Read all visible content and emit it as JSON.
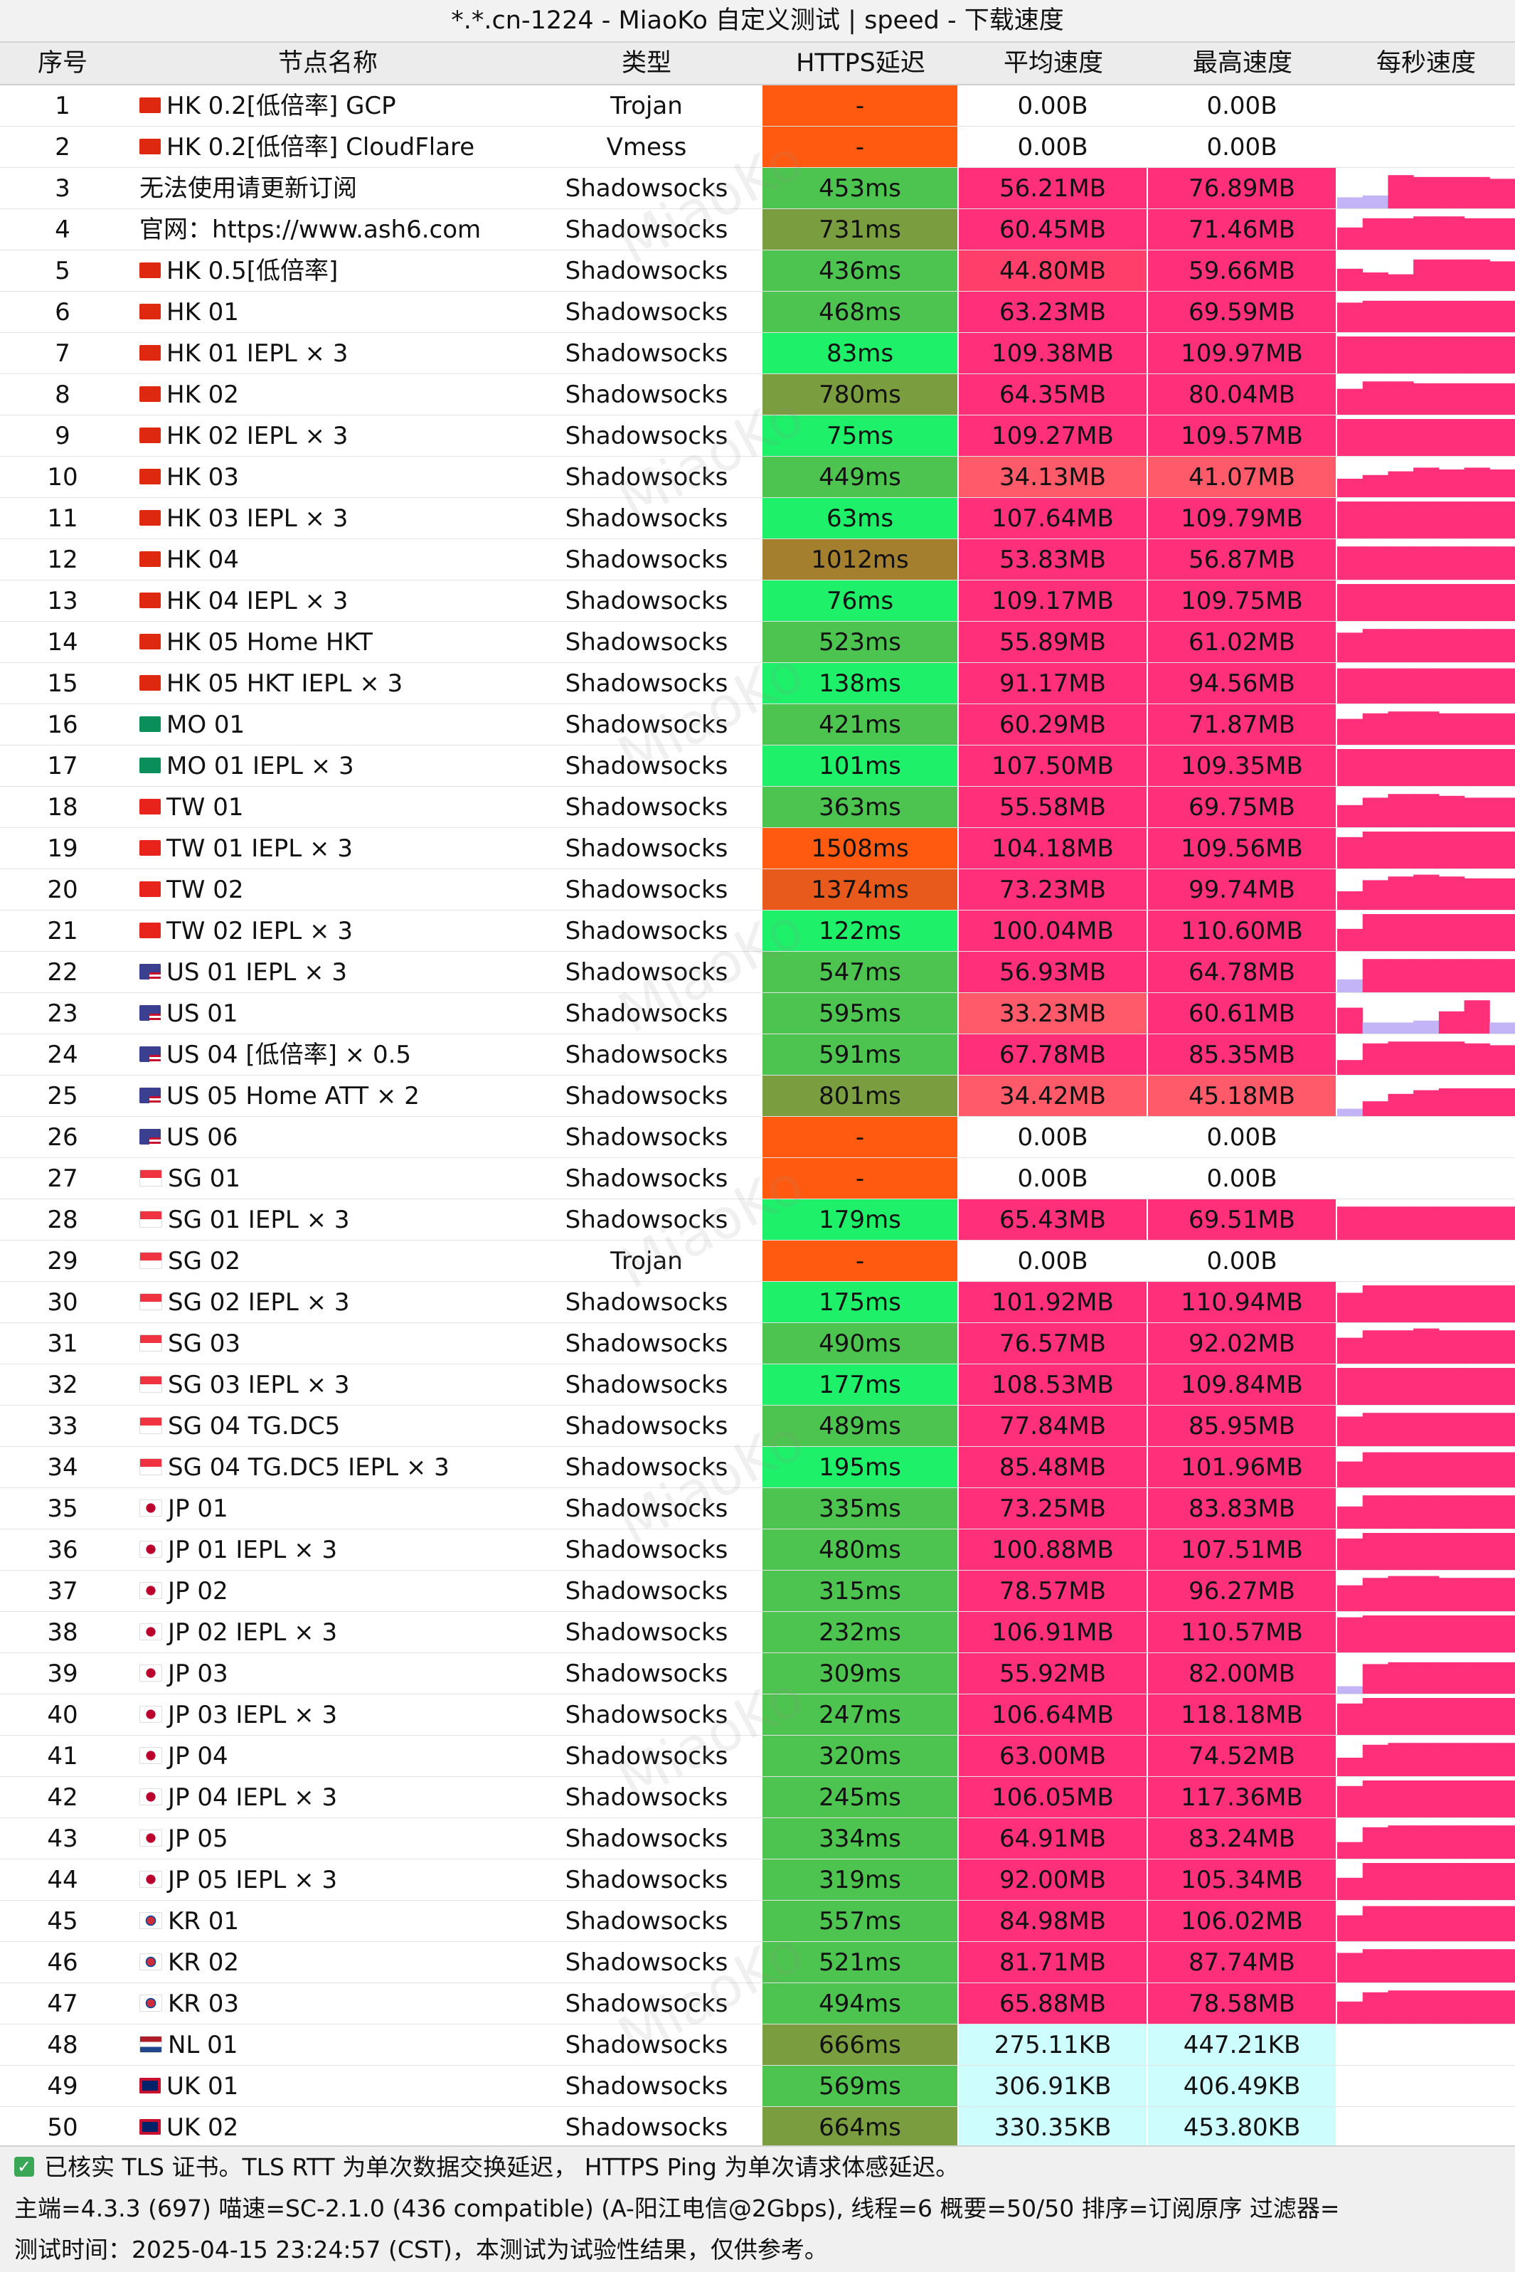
{
  "title": "*.*.cn-1224 - MiaoKo 自定义测试 | speed - 下载速度",
  "watermark": "MiaoKo",
  "headers": {
    "idx": "序号",
    "name": "节点名称",
    "type": "类型",
    "latency": "HTTPS延迟",
    "avg": "平均速度",
    "max": "最高速度",
    "per_second": "每秒速度"
  },
  "colors": {
    "fail": "#ff5a0f",
    "speed_fast": "#ff2f7a",
    "speed_kb": "#cdfdfd",
    "bar_purple": "#c2b4f7",
    "latency_good": "#1ef06a",
    "latency_mid": "#4dc44f",
    "latency_slow": "#7a9e3f",
    "latency_very_slow": "#a47f2e",
    "latency_bad": "#e85a1b"
  },
  "rows": [
    {
      "idx": "1",
      "flag": "hk",
      "name": "HK 0.2[低倍率] GCP",
      "type": "Trojan",
      "latency": "-",
      "lat_color": "#ff5a0f",
      "avg": "0.00B",
      "avg_color": "#ffffff",
      "max": "0.00B",
      "max_color": "#ffffff",
      "bars": []
    },
    {
      "idx": "2",
      "flag": "hk",
      "name": "HK 0.2[低倍率] CloudFlare",
      "type": "Vmess",
      "latency": "-",
      "lat_color": "#ff5a0f",
      "avg": "0.00B",
      "avg_color": "#ffffff",
      "max": "0.00B",
      "max_color": "#ffffff",
      "bars": []
    },
    {
      "idx": "3",
      "flag": "",
      "name": "无法使用请更新订阅",
      "type": "Shadowsocks",
      "latency": "453ms",
      "lat_color": "#4dc44f",
      "avg": "56.21MB",
      "avg_color": "#ff2f7a",
      "max": "76.89MB",
      "max_color": "#ff2f7a",
      "bars": [
        0.3,
        0.35,
        0.9,
        0.85,
        0.85,
        0.85,
        0.8
      ]
    },
    {
      "idx": "4",
      "flag": "",
      "name": "官网：https://www.ash6.com",
      "type": "Shadowsocks",
      "latency": "731ms",
      "lat_color": "#7a9e3f",
      "avg": "60.45MB",
      "avg_color": "#ff2f7a",
      "max": "71.46MB",
      "max_color": "#ff2f7a",
      "bars": [
        0.6,
        0.85,
        0.85,
        0.9,
        0.9,
        0.85,
        0.85
      ]
    },
    {
      "idx": "5",
      "flag": "hk",
      "name": "HK 0.5[低倍率]",
      "type": "Shadowsocks",
      "latency": "436ms",
      "lat_color": "#4dc44f",
      "avg": "44.80MB",
      "avg_color": "#ff3f6a",
      "max": "59.66MB",
      "max_color": "#ff2f7a",
      "bars": [
        0.6,
        0.5,
        0.45,
        0.85,
        0.85,
        0.85,
        0.8
      ]
    },
    {
      "idx": "6",
      "flag": "hk",
      "name": "HK 01",
      "type": "Shadowsocks",
      "latency": "468ms",
      "lat_color": "#4dc44f",
      "avg": "63.23MB",
      "avg_color": "#ff2f7a",
      "max": "69.59MB",
      "max_color": "#ff2f7a",
      "bars": [
        0.8,
        0.85,
        0.85,
        0.85,
        0.85,
        0.85,
        0.85
      ]
    },
    {
      "idx": "7",
      "flag": "hk",
      "name": "HK 01 IEPL × 3",
      "type": "Shadowsocks",
      "latency": "83ms",
      "lat_color": "#1ef06a",
      "avg": "109.38MB",
      "avg_color": "#ff2f7a",
      "max": "109.97MB",
      "max_color": "#ff2f7a",
      "bars": [
        1,
        1,
        1,
        1,
        1,
        1,
        1
      ]
    },
    {
      "idx": "8",
      "flag": "hk",
      "name": "HK 02",
      "type": "Shadowsocks",
      "latency": "780ms",
      "lat_color": "#7a9e3f",
      "avg": "64.35MB",
      "avg_color": "#ff2f7a",
      "max": "80.04MB",
      "max_color": "#ff2f7a",
      "bars": [
        0.7,
        0.9,
        0.9,
        0.85,
        0.85,
        0.85,
        0.85
      ]
    },
    {
      "idx": "9",
      "flag": "hk",
      "name": "HK 02 IEPL × 3",
      "type": "Shadowsocks",
      "latency": "75ms",
      "lat_color": "#1ef06a",
      "avg": "109.27MB",
      "avg_color": "#ff2f7a",
      "max": "109.57MB",
      "max_color": "#ff2f7a",
      "bars": [
        1,
        1,
        1,
        1,
        1,
        1,
        1
      ]
    },
    {
      "idx": "10",
      "flag": "hk",
      "name": "HK 03",
      "type": "Shadowsocks",
      "latency": "449ms",
      "lat_color": "#4dc44f",
      "avg": "34.13MB",
      "avg_color": "#ff5a6a",
      "max": "41.07MB",
      "max_color": "#ff5a6a",
      "bars": [
        0.5,
        0.6,
        0.7,
        0.8,
        0.75,
        0.8,
        0.75
      ]
    },
    {
      "idx": "11",
      "flag": "hk",
      "name": "HK 03 IEPL × 3",
      "type": "Shadowsocks",
      "latency": "63ms",
      "lat_color": "#1ef06a",
      "avg": "107.64MB",
      "avg_color": "#ff2f7a",
      "max": "109.79MB",
      "max_color": "#ff2f7a",
      "bars": [
        1,
        1,
        1,
        1,
        1,
        1,
        1
      ]
    },
    {
      "idx": "12",
      "flag": "hk",
      "name": "HK 04",
      "type": "Shadowsocks",
      "latency": "1012ms",
      "lat_color": "#a47f2e",
      "avg": "53.83MB",
      "avg_color": "#ff2f7a",
      "max": "56.87MB",
      "max_color": "#ff2f7a",
      "bars": [
        0.9,
        0.9,
        0.9,
        0.9,
        0.9,
        0.9,
        0.9
      ]
    },
    {
      "idx": "13",
      "flag": "hk",
      "name": "HK 04 IEPL × 3",
      "type": "Shadowsocks",
      "latency": "76ms",
      "lat_color": "#1ef06a",
      "avg": "109.17MB",
      "avg_color": "#ff2f7a",
      "max": "109.75MB",
      "max_color": "#ff2f7a",
      "bars": [
        1,
        1,
        1,
        1,
        1,
        1,
        1
      ]
    },
    {
      "idx": "14",
      "flag": "hk",
      "name": "HK 05 Home HKT",
      "type": "Shadowsocks",
      "latency": "523ms",
      "lat_color": "#4dc44f",
      "avg": "55.89MB",
      "avg_color": "#ff2f7a",
      "max": "61.02MB",
      "max_color": "#ff2f7a",
      "bars": [
        0.8,
        0.9,
        0.9,
        0.9,
        0.9,
        0.9,
        0.9
      ]
    },
    {
      "idx": "15",
      "flag": "hk",
      "name": "HK 05 HKT IEPL × 3",
      "type": "Shadowsocks",
      "latency": "138ms",
      "lat_color": "#1ef06a",
      "avg": "91.17MB",
      "avg_color": "#ff2f7a",
      "max": "94.56MB",
      "max_color": "#ff2f7a",
      "bars": [
        0.95,
        0.95,
        0.95,
        0.95,
        0.95,
        0.95,
        0.95
      ]
    },
    {
      "idx": "16",
      "flag": "mo",
      "name": "MO 01",
      "type": "Shadowsocks",
      "latency": "421ms",
      "lat_color": "#4dc44f",
      "avg": "60.29MB",
      "avg_color": "#ff2f7a",
      "max": "71.87MB",
      "max_color": "#ff2f7a",
      "bars": [
        0.7,
        0.85,
        0.9,
        0.9,
        0.85,
        0.85,
        0.85
      ]
    },
    {
      "idx": "17",
      "flag": "mo",
      "name": "MO 01 IEPL × 3",
      "type": "Shadowsocks",
      "latency": "101ms",
      "lat_color": "#1ef06a",
      "avg": "107.50MB",
      "avg_color": "#ff2f7a",
      "max": "109.35MB",
      "max_color": "#ff2f7a",
      "bars": [
        1,
        1,
        1,
        1,
        1,
        1,
        1
      ]
    },
    {
      "idx": "18",
      "flag": "tw",
      "name": "TW 01",
      "type": "Shadowsocks",
      "latency": "363ms",
      "lat_color": "#4dc44f",
      "avg": "55.58MB",
      "avg_color": "#ff2f7a",
      "max": "69.75MB",
      "max_color": "#ff2f7a",
      "bars": [
        0.6,
        0.8,
        0.9,
        0.9,
        0.85,
        0.8,
        0.8
      ]
    },
    {
      "idx": "19",
      "flag": "tw",
      "name": "TW 01 IEPL × 3",
      "type": "Shadowsocks",
      "latency": "1508ms",
      "lat_color": "#ff5a0f",
      "avg": "104.18MB",
      "avg_color": "#ff2f7a",
      "max": "109.56MB",
      "max_color": "#ff2f7a",
      "bars": [
        0.85,
        1,
        1,
        1,
        1,
        1,
        1
      ]
    },
    {
      "idx": "20",
      "flag": "tw",
      "name": "TW 02",
      "type": "Shadowsocks",
      "latency": "1374ms",
      "lat_color": "#e85a1b",
      "avg": "73.23MB",
      "avg_color": "#ff2f7a",
      "max": "99.74MB",
      "max_color": "#ff2f7a",
      "bars": [
        0.5,
        0.8,
        0.9,
        0.95,
        0.9,
        0.85,
        0.85
      ]
    },
    {
      "idx": "21",
      "flag": "tw",
      "name": "TW 02 IEPL × 3",
      "type": "Shadowsocks",
      "latency": "122ms",
      "lat_color": "#1ef06a",
      "avg": "100.04MB",
      "avg_color": "#ff2f7a",
      "max": "110.60MB",
      "max_color": "#ff2f7a",
      "bars": [
        0.6,
        1,
        1,
        1,
        1,
        1,
        1
      ]
    },
    {
      "idx": "22",
      "flag": "us",
      "name": "US 01 IEPL × 3",
      "type": "Shadowsocks",
      "latency": "547ms",
      "lat_color": "#4dc44f",
      "avg": "56.93MB",
      "avg_color": "#ff2f7a",
      "max": "64.78MB",
      "max_color": "#ff2f7a",
      "bars": [
        0.35,
        0.9,
        0.9,
        0.9,
        0.9,
        0.9,
        0.9
      ]
    },
    {
      "idx": "23",
      "flag": "us",
      "name": "US 01",
      "type": "Shadowsocks",
      "latency": "595ms",
      "lat_color": "#4dc44f",
      "avg": "33.23MB",
      "avg_color": "#ff5a6a",
      "max": "60.61MB",
      "max_color": "#ff2f7a",
      "bars": [
        0.7,
        0.3,
        0.3,
        0.35,
        0.6,
        0.9,
        0.3
      ]
    },
    {
      "idx": "24",
      "flag": "us",
      "name": "US 04 [低倍率] × 0.5",
      "type": "Shadowsocks",
      "latency": "591ms",
      "lat_color": "#4dc44f",
      "avg": "67.78MB",
      "avg_color": "#ff2f7a",
      "max": "85.35MB",
      "max_color": "#ff2f7a",
      "bars": [
        0.4,
        0.85,
        0.9,
        0.9,
        0.9,
        0.85,
        0.8
      ]
    },
    {
      "idx": "25",
      "flag": "us",
      "name": "US 05 Home ATT × 2",
      "type": "Shadowsocks",
      "latency": "801ms",
      "lat_color": "#7a9e3f",
      "avg": "34.42MB",
      "avg_color": "#ff5a6a",
      "max": "45.18MB",
      "max_color": "#ff5a6a",
      "bars": [
        0.2,
        0.4,
        0.6,
        0.7,
        0.75,
        0.75,
        0.75
      ]
    },
    {
      "idx": "26",
      "flag": "us",
      "name": "US 06",
      "type": "Shadowsocks",
      "latency": "-",
      "lat_color": "#ff5a0f",
      "avg": "0.00B",
      "avg_color": "#ffffff",
      "max": "0.00B",
      "max_color": "#ffffff",
      "bars": []
    },
    {
      "idx": "27",
      "flag": "sg",
      "name": "SG 01",
      "type": "Shadowsocks",
      "latency": "-",
      "lat_color": "#ff5a0f",
      "avg": "0.00B",
      "avg_color": "#ffffff",
      "max": "0.00B",
      "max_color": "#ffffff",
      "bars": []
    },
    {
      "idx": "28",
      "flag": "sg",
      "name": "SG 01 IEPL × 3",
      "type": "Shadowsocks",
      "latency": "179ms",
      "lat_color": "#1ef06a",
      "avg": "65.43MB",
      "avg_color": "#ff2f7a",
      "max": "69.51MB",
      "max_color": "#ff2f7a",
      "bars": [
        0.9,
        0.9,
        0.9,
        0.9,
        0.9,
        0.9,
        0.9
      ]
    },
    {
      "idx": "29",
      "flag": "sg",
      "name": "SG 02",
      "type": "Trojan",
      "latency": "-",
      "lat_color": "#ff5a0f",
      "avg": "0.00B",
      "avg_color": "#ffffff",
      "max": "0.00B",
      "max_color": "#ffffff",
      "bars": []
    },
    {
      "idx": "30",
      "flag": "sg",
      "name": "SG 02 IEPL × 3",
      "type": "Shadowsocks",
      "latency": "175ms",
      "lat_color": "#1ef06a",
      "avg": "101.92MB",
      "avg_color": "#ff2f7a",
      "max": "110.94MB",
      "max_color": "#ff2f7a",
      "bars": [
        0.8,
        1,
        1,
        1,
        1,
        1,
        1
      ]
    },
    {
      "idx": "31",
      "flag": "sg",
      "name": "SG 03",
      "type": "Shadowsocks",
      "latency": "490ms",
      "lat_color": "#4dc44f",
      "avg": "76.57MB",
      "avg_color": "#ff2f7a",
      "max": "92.02MB",
      "max_color": "#ff2f7a",
      "bars": [
        0.7,
        0.9,
        0.9,
        0.95,
        0.9,
        0.9,
        0.9
      ]
    },
    {
      "idx": "32",
      "flag": "sg",
      "name": "SG 03 IEPL × 3",
      "type": "Shadowsocks",
      "latency": "177ms",
      "lat_color": "#1ef06a",
      "avg": "108.53MB",
      "avg_color": "#ff2f7a",
      "max": "109.84MB",
      "max_color": "#ff2f7a",
      "bars": [
        1,
        1,
        1,
        1,
        1,
        1,
        1
      ]
    },
    {
      "idx": "33",
      "flag": "sg",
      "name": "SG 04 TG.DC5",
      "type": "Shadowsocks",
      "latency": "489ms",
      "lat_color": "#4dc44f",
      "avg": "77.84MB",
      "avg_color": "#ff2f7a",
      "max": "85.95MB",
      "max_color": "#ff2f7a",
      "bars": [
        0.8,
        0.9,
        0.9,
        0.9,
        0.9,
        0.9,
        0.9
      ]
    },
    {
      "idx": "34",
      "flag": "sg",
      "name": "SG 04 TG.DC5 IEPL × 3",
      "type": "Shadowsocks",
      "latency": "195ms",
      "lat_color": "#1ef06a",
      "avg": "85.48MB",
      "avg_color": "#ff2f7a",
      "max": "101.96MB",
      "max_color": "#ff2f7a",
      "bars": [
        0.7,
        0.95,
        0.95,
        0.95,
        0.95,
        0.95,
        0.95
      ]
    },
    {
      "idx": "35",
      "flag": "jp",
      "name": "JP 01",
      "type": "Shadowsocks",
      "latency": "335ms",
      "lat_color": "#4dc44f",
      "avg": "73.25MB",
      "avg_color": "#ff2f7a",
      "max": "83.83MB",
      "max_color": "#ff2f7a",
      "bars": [
        0.6,
        0.9,
        0.9,
        0.9,
        0.9,
        0.9,
        0.9
      ]
    },
    {
      "idx": "36",
      "flag": "jp",
      "name": "JP 01 IEPL × 3",
      "type": "Shadowsocks",
      "latency": "480ms",
      "lat_color": "#4dc44f",
      "avg": "100.88MB",
      "avg_color": "#ff2f7a",
      "max": "107.51MB",
      "max_color": "#ff2f7a",
      "bars": [
        0.85,
        1,
        1,
        1,
        1,
        1,
        1
      ]
    },
    {
      "idx": "37",
      "flag": "jp",
      "name": "JP 02",
      "type": "Shadowsocks",
      "latency": "315ms",
      "lat_color": "#4dc44f",
      "avg": "78.57MB",
      "avg_color": "#ff2f7a",
      "max": "96.27MB",
      "max_color": "#ff2f7a",
      "bars": [
        0.7,
        0.9,
        0.95,
        0.95,
        0.9,
        0.9,
        0.9
      ]
    },
    {
      "idx": "38",
      "flag": "jp",
      "name": "JP 02 IEPL × 3",
      "type": "Shadowsocks",
      "latency": "232ms",
      "lat_color": "#4dc44f",
      "avg": "106.91MB",
      "avg_color": "#ff2f7a",
      "max": "110.57MB",
      "max_color": "#ff2f7a",
      "bars": [
        0.95,
        1,
        1,
        1,
        1,
        1,
        1
      ]
    },
    {
      "idx": "39",
      "flag": "jp",
      "name": "JP 03",
      "type": "Shadowsocks",
      "latency": "309ms",
      "lat_color": "#4dc44f",
      "avg": "55.92MB",
      "avg_color": "#ff2f7a",
      "max": "82.00MB",
      "max_color": "#ff2f7a",
      "bars": [
        0.2,
        0.8,
        0.85,
        0.85,
        0.85,
        0.85,
        0.85
      ]
    },
    {
      "idx": "40",
      "flag": "jp",
      "name": "JP 03 IEPL × 3",
      "type": "Shadowsocks",
      "latency": "247ms",
      "lat_color": "#4dc44f",
      "avg": "106.64MB",
      "avg_color": "#ff2f7a",
      "max": "118.18MB",
      "max_color": "#ff2f7a",
      "bars": [
        0.85,
        1,
        1,
        1,
        1,
        1,
        1
      ]
    },
    {
      "idx": "41",
      "flag": "jp",
      "name": "JP 04",
      "type": "Shadowsocks",
      "latency": "320ms",
      "lat_color": "#4dc44f",
      "avg": "63.00MB",
      "avg_color": "#ff2f7a",
      "max": "74.52MB",
      "max_color": "#ff2f7a",
      "bars": [
        0.5,
        0.85,
        0.9,
        0.9,
        0.9,
        0.9,
        0.9
      ]
    },
    {
      "idx": "42",
      "flag": "jp",
      "name": "JP 04 IEPL × 3",
      "type": "Shadowsocks",
      "latency": "245ms",
      "lat_color": "#4dc44f",
      "avg": "106.05MB",
      "avg_color": "#ff2f7a",
      "max": "117.36MB",
      "max_color": "#ff2f7a",
      "bars": [
        0.85,
        1,
        1,
        1,
        1,
        1,
        1
      ]
    },
    {
      "idx": "43",
      "flag": "jp",
      "name": "JP 05",
      "type": "Shadowsocks",
      "latency": "334ms",
      "lat_color": "#4dc44f",
      "avg": "64.91MB",
      "avg_color": "#ff2f7a",
      "max": "83.24MB",
      "max_color": "#ff2f7a",
      "bars": [
        0.45,
        0.85,
        0.9,
        0.9,
        0.9,
        0.9,
        0.9
      ]
    },
    {
      "idx": "44",
      "flag": "jp",
      "name": "JP 05 IEPL × 3",
      "type": "Shadowsocks",
      "latency": "319ms",
      "lat_color": "#4dc44f",
      "avg": "92.00MB",
      "avg_color": "#ff2f7a",
      "max": "105.34MB",
      "max_color": "#ff2f7a",
      "bars": [
        0.6,
        1,
        1,
        1,
        1,
        1,
        1
      ]
    },
    {
      "idx": "45",
      "flag": "kr",
      "name": "KR 01",
      "type": "Shadowsocks",
      "latency": "557ms",
      "lat_color": "#4dc44f",
      "avg": "84.98MB",
      "avg_color": "#ff2f7a",
      "max": "106.02MB",
      "max_color": "#ff2f7a",
      "bars": [
        0.7,
        0.95,
        0.95,
        0.95,
        0.95,
        0.95,
        0.95
      ]
    },
    {
      "idx": "46",
      "flag": "kr",
      "name": "KR 02",
      "type": "Shadowsocks",
      "latency": "521ms",
      "lat_color": "#4dc44f",
      "avg": "81.71MB",
      "avg_color": "#ff2f7a",
      "max": "87.74MB",
      "max_color": "#ff2f7a",
      "bars": [
        0.8,
        0.9,
        0.9,
        0.9,
        0.9,
        0.9,
        0.9
      ]
    },
    {
      "idx": "47",
      "flag": "kr",
      "name": "KR 03",
      "type": "Shadowsocks",
      "latency": "494ms",
      "lat_color": "#4dc44f",
      "avg": "65.88MB",
      "avg_color": "#ff2f7a",
      "max": "78.58MB",
      "max_color": "#ff2f7a",
      "bars": [
        0.6,
        0.85,
        0.9,
        0.9,
        0.9,
        0.9,
        0.9
      ]
    },
    {
      "idx": "48",
      "flag": "nl",
      "name": "NL 01",
      "type": "Shadowsocks",
      "latency": "666ms",
      "lat_color": "#7a9e3f",
      "avg": "275.11KB",
      "avg_color": "#cdfdfd",
      "max": "447.21KB",
      "max_color": "#cdfdfd",
      "bars": []
    },
    {
      "idx": "49",
      "flag": "uk",
      "name": "UK 01",
      "type": "Shadowsocks",
      "latency": "569ms",
      "lat_color": "#4dc44f",
      "avg": "306.91KB",
      "avg_color": "#cdfdfd",
      "max": "406.49KB",
      "max_color": "#cdfdfd",
      "bars": []
    },
    {
      "idx": "50",
      "flag": "uk",
      "name": "UK 02",
      "type": "Shadowsocks",
      "latency": "664ms",
      "lat_color": "#7a9e3f",
      "avg": "330.35KB",
      "avg_color": "#cdfdfd",
      "max": "453.80KB",
      "max_color": "#cdfdfd",
      "bars": []
    }
  ],
  "footer": {
    "line1": "已核实 TLS 证书。TLS RTT 为单次数据交换延迟， HTTPS Ping 为单次请求体感延迟。",
    "line2": "主端=4.3.3 (697) 喵速=SC-2.1.0 (436 compatible) (A-阳江电信@2Gbps), 线程=6 概要=50/50 排序=订阅原序 过滤器=",
    "line3": "测试时间：2025-04-15 23:24:57 (CST)，本测试为试验性结果，仅供参考。"
  }
}
